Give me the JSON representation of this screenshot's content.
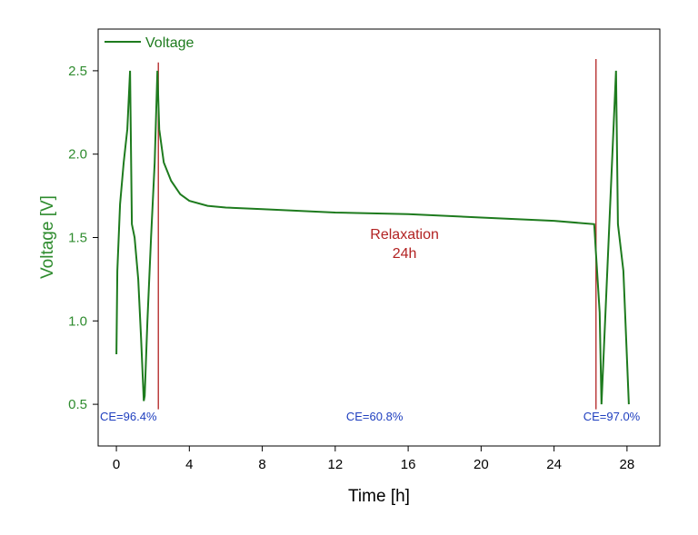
{
  "chart_data": {
    "type": "line",
    "xlabel": "Time [h]",
    "ylabel": "Voltage [V]",
    "xlim": [
      -1,
      29.8
    ],
    "ylim": [
      0.25,
      2.75
    ],
    "xticks": [
      0,
      4,
      8,
      12,
      16,
      20,
      24,
      28
    ],
    "yticks": [
      0.5,
      1.0,
      1.5,
      2.0,
      2.5
    ],
    "ytick_labels": [
      "0.5",
      "1.0",
      "1.5",
      "2.0",
      "2.5"
    ],
    "legend": {
      "position": "top-left",
      "entries": [
        "Voltage"
      ]
    },
    "colors": {
      "voltage": "#1e7b1e",
      "marker": "#b22222",
      "ce": "#1f3fbf",
      "ylabel": "#2e8b2e"
    },
    "series": [
      {
        "name": "Voltage",
        "x": [
          0.0,
          0.05,
          0.2,
          0.4,
          0.6,
          0.75,
          0.85,
          1.0,
          1.2,
          1.35,
          1.5,
          1.55,
          1.7,
          1.9,
          2.1,
          2.25,
          2.35,
          2.6,
          3.0,
          3.5,
          4.0,
          5.0,
          6.0,
          8.0,
          12.0,
          16.0,
          20.0,
          24.0,
          26.2,
          26.3,
          26.5,
          26.6,
          26.8,
          27.0,
          27.2,
          27.4,
          27.5,
          27.8,
          28.1
        ],
        "y": [
          0.8,
          1.3,
          1.7,
          1.95,
          2.15,
          2.5,
          1.58,
          1.5,
          1.25,
          0.9,
          0.52,
          0.55,
          1.0,
          1.5,
          1.95,
          2.5,
          2.15,
          1.95,
          1.84,
          1.76,
          1.72,
          1.69,
          1.68,
          1.67,
          1.65,
          1.64,
          1.62,
          1.6,
          1.58,
          1.4,
          1.05,
          0.5,
          1.0,
          1.5,
          2.0,
          2.5,
          1.58,
          1.3,
          0.5
        ]
      }
    ],
    "markers": [
      {
        "x": 2.3,
        "y_top": 2.55
      },
      {
        "x": 26.3,
        "y_top": 2.57
      }
    ],
    "annotations": {
      "relaxation": {
        "line1": "Relaxation",
        "line2": "24h",
        "x": 15.8,
        "y": 1.52
      },
      "ce": [
        {
          "text": "CE=96.4%",
          "x": -0.9,
          "y": 0.43
        },
        {
          "text": "CE=60.8%",
          "x": 12.6,
          "y": 0.43
        },
        {
          "text": "CE=97.0%",
          "x": 25.6,
          "y": 0.43
        }
      ]
    }
  }
}
